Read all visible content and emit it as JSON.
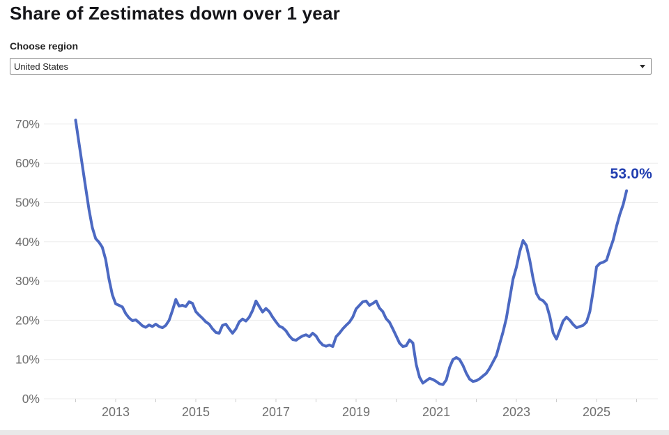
{
  "header": {
    "title": "Share of Zestimates down over 1 year"
  },
  "region_selector": {
    "label": "Choose region",
    "selected_option": "United States",
    "icon": "caret-down-icon"
  },
  "colors": {
    "line": "#4c69c2",
    "end_label": "#203db0",
    "axis_text": "#6f6f6f",
    "gridline": "#ededed",
    "tick": "#cccccc",
    "title_text": "#151519"
  },
  "chart_data": {
    "type": "line",
    "title": "Share of Zestimates down over 1 year",
    "xlabel": "",
    "ylabel": "",
    "grid": "horizontal",
    "legend": "none",
    "ylim": [
      0,
      75
    ],
    "y_ticks": [
      0,
      10,
      20,
      30,
      40,
      50,
      60,
      70
    ],
    "y_tick_labels": [
      "0%",
      "10%",
      "20%",
      "30%",
      "40%",
      "50%",
      "60%",
      "70%"
    ],
    "x_tick_years": [
      2013,
      2015,
      2017,
      2019,
      2021,
      2023,
      2025
    ],
    "x_tick_labels": [
      "2013",
      "2015",
      "2017",
      "2019",
      "2021",
      "2023",
      "2025"
    ],
    "start": "2012-01",
    "freq": "monthly",
    "end_label": {
      "text": "53.0%",
      "value": 53.0
    },
    "values": [
      71.0,
      65.2,
      59.5,
      53.8,
      48.2,
      43.6,
      40.8,
      39.9,
      38.6,
      35.5,
      30.5,
      26.5,
      24.2,
      23.8,
      23.4,
      21.7,
      20.6,
      19.9,
      20.1,
      19.4,
      18.6,
      18.2,
      18.8,
      18.4,
      19.0,
      18.4,
      18.1,
      18.7,
      20.0,
      22.5,
      25.3,
      23.6,
      23.8,
      23.5,
      24.7,
      24.3,
      22.2,
      21.3,
      20.5,
      19.6,
      19.0,
      17.8,
      16.9,
      16.7,
      18.7,
      19.0,
      17.8,
      16.7,
      17.8,
      19.6,
      20.3,
      19.8,
      20.8,
      22.5,
      24.9,
      23.5,
      22.1,
      23.0,
      22.2,
      20.8,
      19.6,
      18.5,
      18.1,
      17.3,
      16.0,
      15.1,
      14.9,
      15.5,
      16.0,
      16.3,
      15.8,
      16.7,
      16.0,
      14.6,
      13.7,
      13.4,
      13.7,
      13.3,
      15.8,
      16.7,
      17.8,
      18.7,
      19.5,
      20.8,
      22.9,
      23.8,
      24.7,
      24.9,
      23.8,
      24.3,
      24.9,
      23.1,
      22.2,
      20.4,
      19.5,
      17.8,
      16.0,
      14.2,
      13.3,
      13.5,
      15.0,
      14.2,
      8.7,
      5.5,
      4.0,
      4.6,
      5.2,
      4.9,
      4.4,
      3.8,
      3.6,
      4.8,
      8.0,
      10.0,
      10.5,
      10.0,
      8.5,
      6.5,
      5.0,
      4.4,
      4.6,
      5.1,
      5.8,
      6.5,
      7.8,
      9.4,
      11.0,
      14.0,
      17.0,
      20.5,
      25.5,
      30.5,
      33.5,
      37.5,
      40.3,
      39.0,
      35.3,
      30.6,
      26.8,
      25.4,
      25.0,
      24.0,
      21.0,
      16.8,
      15.2,
      17.5,
      19.8,
      20.8,
      20.0,
      18.9,
      18.1,
      18.4,
      18.7,
      19.5,
      22.2,
      27.5,
      33.6,
      34.5,
      34.8,
      35.3,
      38.0,
      40.5,
      44.0,
      47.0,
      49.5,
      53.0
    ]
  }
}
